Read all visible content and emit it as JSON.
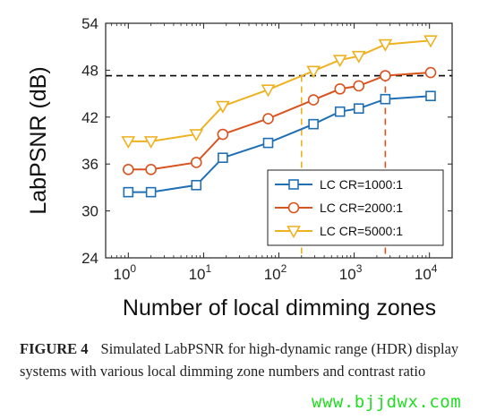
{
  "chart_data": {
    "type": "line",
    "xscale": "log",
    "xlabel": "Number of local dimming zones",
    "ylabel": "LabPSNR (dB)",
    "xlim": [
      0.5,
      20000
    ],
    "ylim": [
      24,
      54
    ],
    "yticks": [
      24,
      30,
      36,
      42,
      48,
      54
    ],
    "xticks": [
      {
        "base": "10",
        "exp": "0",
        "value": 1
      },
      {
        "base": "10",
        "exp": "1",
        "value": 10
      },
      {
        "base": "10",
        "exp": "2",
        "value": 100
      },
      {
        "base": "10",
        "exp": "3",
        "value": 1000
      },
      {
        "base": "10",
        "exp": "4",
        "value": 10000
      }
    ],
    "series": [
      {
        "name": "LC CR=1000:1",
        "color": "#1f6fb5",
        "marker": "square",
        "x": [
          1,
          2,
          8,
          18,
          72,
          288,
          648,
          1152,
          2592,
          10368
        ],
        "y": [
          32.4,
          32.4,
          33.3,
          36.8,
          38.7,
          41.1,
          42.7,
          43.1,
          44.3,
          44.7
        ]
      },
      {
        "name": "LC CR=2000:1",
        "color": "#d9531e",
        "marker": "circle",
        "x": [
          1,
          2,
          8,
          18,
          72,
          288,
          648,
          1152,
          2592,
          10368
        ],
        "y": [
          35.3,
          35.3,
          36.2,
          39.8,
          41.8,
          44.2,
          45.6,
          46.0,
          47.3,
          47.7
        ]
      },
      {
        "name": "LC CR=5000:1",
        "color": "#eeb120",
        "marker": "triangle-down",
        "x": [
          1,
          2,
          8,
          18,
          72,
          288,
          648,
          1152,
          2592,
          10368
        ],
        "y": [
          38.9,
          38.9,
          39.8,
          43.4,
          45.5,
          47.9,
          49.3,
          49.8,
          51.3,
          51.8
        ]
      }
    ],
    "reference_lines": [
      {
        "type": "horizontal",
        "y": 47.3,
        "color": "#000000",
        "style": "dashed"
      },
      {
        "type": "vertical",
        "x": 200,
        "y_to": 47.3,
        "color": "#eeb120",
        "style": "dashed"
      },
      {
        "type": "vertical",
        "x": 2592,
        "y_to": 47.3,
        "color": "#d9531e",
        "style": "dashed"
      }
    ],
    "legend": "bottom-right",
    "grid": false
  },
  "caption": {
    "label": "FIGURE 4",
    "text": "Simulated LabPSNR for high-dynamic range (HDR) display systems with various local dimming zone numbers and contrast ratio"
  },
  "watermark": "www.bjjdwx.com"
}
